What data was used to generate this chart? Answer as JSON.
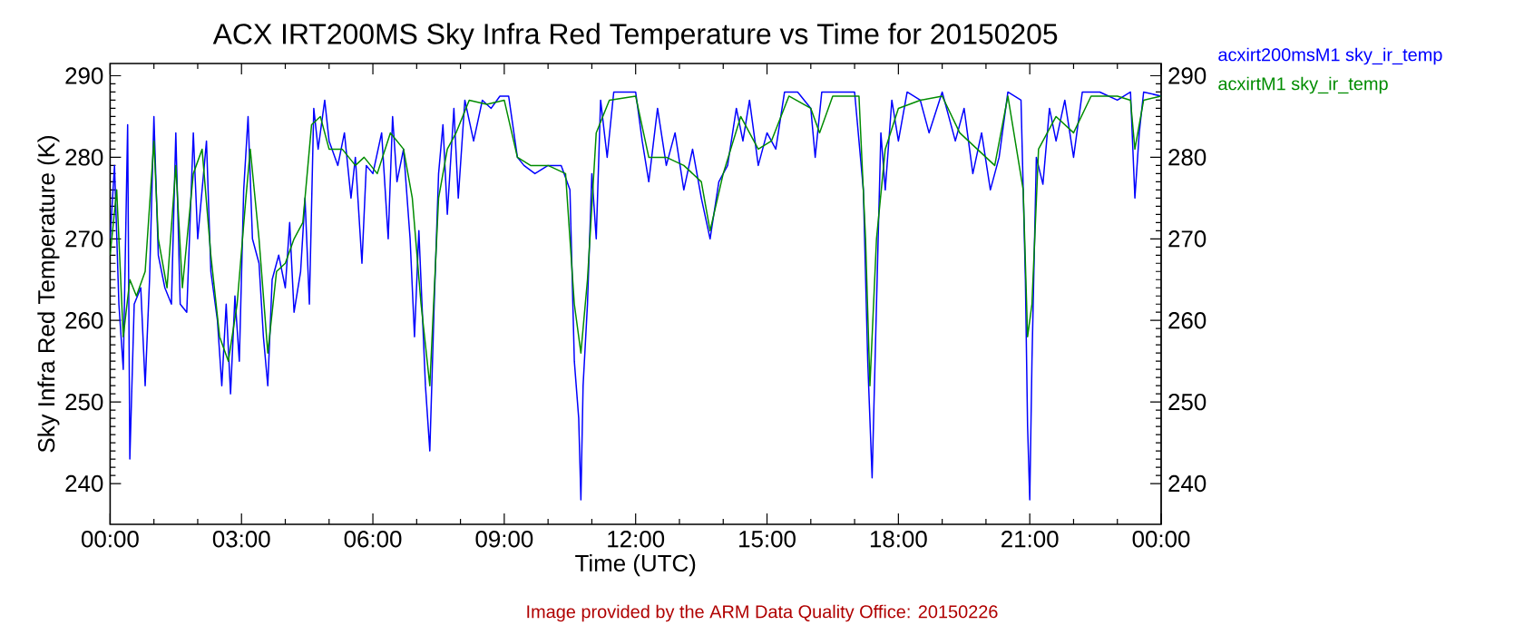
{
  "chart_data": {
    "type": "line",
    "title": "ACX IRT200MS Sky Infra Red Temperature vs Time for 20150205",
    "xlabel": "Time (UTC)",
    "ylabel": "Sky Infra Red Temperature (K)",
    "annotations": [
      "Image provided by the ARM Data Quality Office: 20150226"
    ],
    "xlim": [
      0,
      24
    ],
    "xticks": [
      {
        "value": 0,
        "label": "00:00"
      },
      {
        "value": 3,
        "label": "03:00"
      },
      {
        "value": 6,
        "label": "06:00"
      },
      {
        "value": 9,
        "label": "09:00"
      },
      {
        "value": 12,
        "label": "12:00"
      },
      {
        "value": 15,
        "label": "15:00"
      },
      {
        "value": 18,
        "label": "18:00"
      },
      {
        "value": 21,
        "label": "21:00"
      },
      {
        "value": 24,
        "label": "00:00"
      }
    ],
    "ylim": [
      235,
      291.5
    ],
    "yticks": [
      240,
      250,
      260,
      270,
      280,
      290
    ],
    "y2lim": [
      235,
      291.5
    ],
    "y2ticks": [
      240,
      250,
      260,
      270,
      280,
      290
    ],
    "legend": "top right",
    "series": [
      {
        "name": "acxirt200msM1 sky_ir_temp",
        "color": "#0000ff",
        "x": [
          0.0,
          0.1,
          0.2,
          0.3,
          0.4,
          0.45,
          0.55,
          0.7,
          0.8,
          0.9,
          1.0,
          1.1,
          1.25,
          1.4,
          1.5,
          1.6,
          1.75,
          1.9,
          2.0,
          2.1,
          2.2,
          2.3,
          2.45,
          2.55,
          2.65,
          2.75,
          2.85,
          2.95,
          3.05,
          3.15,
          3.25,
          3.4,
          3.5,
          3.6,
          3.7,
          3.85,
          4.0,
          4.1,
          4.2,
          4.35,
          4.45,
          4.55,
          4.65,
          4.75,
          4.9,
          5.0,
          5.2,
          5.35,
          5.5,
          5.6,
          5.75,
          5.85,
          6.0,
          6.2,
          6.35,
          6.45,
          6.55,
          6.7,
          6.85,
          6.95,
          7.05,
          7.2,
          7.3,
          7.4,
          7.5,
          7.6,
          7.7,
          7.85,
          7.95,
          8.1,
          8.3,
          8.5,
          8.7,
          8.9,
          9.1,
          9.3,
          9.45,
          9.7,
          10.0,
          10.3,
          10.5,
          10.6,
          10.7,
          10.75,
          10.8,
          10.9,
          11.0,
          11.1,
          11.2,
          11.35,
          11.5,
          11.8,
          12.0,
          12.15,
          12.3,
          12.5,
          12.7,
          12.9,
          13.1,
          13.3,
          13.5,
          13.7,
          13.9,
          14.1,
          14.3,
          14.45,
          14.6,
          14.8,
          15.0,
          15.2,
          15.4,
          15.7,
          16.0,
          16.1,
          16.25,
          16.6,
          17.0,
          17.2,
          17.3,
          17.4,
          17.5,
          17.6,
          17.7,
          17.85,
          18.0,
          18.2,
          18.5,
          18.7,
          19.0,
          19.3,
          19.5,
          19.7,
          19.9,
          20.1,
          20.3,
          20.5,
          20.8,
          20.9,
          20.95,
          21.0,
          21.05,
          21.15,
          21.3,
          21.45,
          21.6,
          21.8,
          22.0,
          22.2,
          22.6,
          23.0,
          23.3,
          23.4,
          23.5,
          23.6,
          24.0
        ],
        "values": [
          270,
          279,
          262,
          254,
          284,
          243,
          262,
          264,
          252,
          265,
          285,
          268,
          264,
          262,
          283,
          262,
          261,
          283,
          270,
          276,
          282,
          266,
          260,
          252,
          262,
          251,
          263,
          255,
          276,
          285,
          270,
          267,
          258,
          252,
          265,
          268,
          264,
          272,
          261,
          266,
          275,
          262,
          286,
          281,
          287,
          282,
          279,
          283,
          275,
          280,
          267,
          279,
          278,
          283,
          270,
          285,
          277,
          281,
          270,
          258,
          271,
          252,
          244,
          262,
          278,
          284,
          273,
          286,
          275,
          287,
          282,
          287,
          286,
          287.5,
          287.5,
          280,
          279,
          278,
          279,
          279,
          276,
          255,
          248,
          238,
          252,
          262,
          278,
          270,
          287,
          280,
          288,
          288,
          288,
          282,
          277,
          286,
          279,
          283,
          276,
          281,
          275,
          270,
          277,
          279,
          286,
          282,
          287,
          279,
          283,
          281,
          288,
          288,
          286,
          280,
          288,
          288,
          288,
          276,
          255,
          240.7,
          262,
          283,
          276,
          287,
          282,
          288,
          287,
          283,
          288,
          282,
          286,
          278,
          283,
          276,
          280,
          288,
          287,
          265,
          247,
          238,
          255,
          280,
          276.7,
          286,
          282,
          287,
          280,
          288,
          288,
          287,
          288,
          275,
          283,
          288,
          287.5
        ]
      },
      {
        "name": "acxirtM1 sky_ir_temp",
        "color": "#008c00",
        "x": [
          0.0,
          0.15,
          0.3,
          0.45,
          0.6,
          0.8,
          1.0,
          1.1,
          1.3,
          1.5,
          1.65,
          1.9,
          2.1,
          2.3,
          2.5,
          2.7,
          2.9,
          3.1,
          3.2,
          3.4,
          3.6,
          3.8,
          4.0,
          4.2,
          4.4,
          4.6,
          4.8,
          5.0,
          5.3,
          5.6,
          5.8,
          6.1,
          6.4,
          6.7,
          6.9,
          7.1,
          7.3,
          7.5,
          7.7,
          7.9,
          8.2,
          8.6,
          9.0,
          9.3,
          9.6,
          10.0,
          10.4,
          10.6,
          10.75,
          10.9,
          11.1,
          11.4,
          12.0,
          12.3,
          12.7,
          13.1,
          13.5,
          13.7,
          14.0,
          14.4,
          14.8,
          15.1,
          15.5,
          16.0,
          16.2,
          16.5,
          17.1,
          17.25,
          17.35,
          17.5,
          17.7,
          18.0,
          18.5,
          19.0,
          19.4,
          19.8,
          20.2,
          20.5,
          20.85,
          20.95,
          21.05,
          21.2,
          21.6,
          22.0,
          22.4,
          23.0,
          23.3,
          23.4,
          23.6,
          24.0
        ],
        "values": [
          268,
          276,
          258,
          265,
          263,
          266,
          282,
          270,
          264,
          279,
          264,
          278,
          281,
          268,
          258,
          255,
          262,
          275,
          281,
          270,
          256,
          266,
          267,
          270,
          272,
          284,
          285,
          281,
          281,
          279,
          280,
          278,
          283,
          281,
          275,
          262,
          252,
          275,
          281,
          283,
          287,
          286.5,
          287,
          280,
          279,
          279,
          278,
          262,
          256,
          265,
          283,
          287,
          287.5,
          280,
          280,
          279,
          277,
          271,
          278,
          285,
          281,
          282,
          287.5,
          286,
          283,
          287.5,
          287.5,
          270,
          252,
          270,
          281,
          286,
          287,
          287.5,
          283,
          281,
          279,
          287.5,
          276,
          258,
          262,
          281,
          285,
          283,
          287.5,
          287.5,
          287,
          281,
          287,
          287.5
        ]
      }
    ]
  }
}
